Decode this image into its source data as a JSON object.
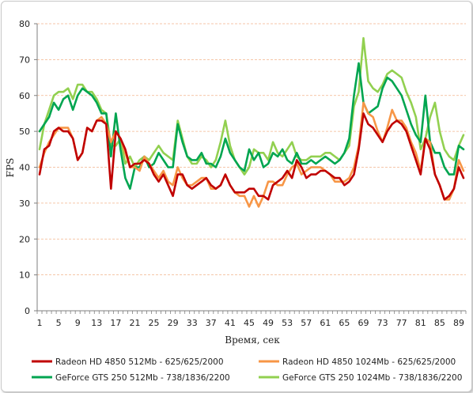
{
  "chart_data": {
    "type": "line",
    "xlabel": "Время, сек",
    "ylabel": "FPS",
    "ylim": [
      0,
      80
    ],
    "yticks": [
      "0",
      "10",
      "20",
      "30",
      "40",
      "50",
      "60",
      "70",
      "80"
    ],
    "xticks": [
      "1",
      "5",
      "9",
      "13",
      "17",
      "21",
      "25",
      "29",
      "33",
      "37",
      "41",
      "45",
      "49",
      "53",
      "57",
      "61",
      "65",
      "69",
      "73",
      "77",
      "81",
      "85",
      "89"
    ],
    "x": [
      1,
      2,
      3,
      4,
      5,
      6,
      7,
      8,
      9,
      10,
      11,
      12,
      13,
      14,
      15,
      16,
      17,
      18,
      19,
      20,
      21,
      22,
      23,
      24,
      25,
      26,
      27,
      28,
      29,
      30,
      31,
      32,
      33,
      34,
      35,
      36,
      37,
      38,
      39,
      40,
      41,
      42,
      43,
      44,
      45,
      46,
      47,
      48,
      49,
      50,
      51,
      52,
      53,
      54,
      55,
      56,
      57,
      58,
      59,
      60,
      61,
      62,
      63,
      64,
      65,
      66,
      67,
      68,
      69,
      70,
      71,
      72,
      73,
      74,
      75,
      76,
      77,
      78,
      79,
      80,
      81,
      82,
      83,
      84,
      85,
      86,
      87,
      88,
      89,
      90
    ],
    "grid": "horizontal-dashed",
    "legend_position": "bottom",
    "series": [
      {
        "name": "Radeon HD 4850 512Mb - 625/625/2000",
        "color": "#c00000",
        "values": [
          38,
          45,
          46,
          50,
          51,
          50,
          50,
          48,
          42,
          44,
          51,
          50,
          53,
          53,
          52,
          34,
          50,
          48,
          45,
          40,
          41,
          41,
          42,
          41,
          38,
          36,
          38,
          35,
          32,
          38,
          38,
          35,
          34,
          35,
          36,
          37,
          35,
          34,
          35,
          38,
          35,
          33,
          33,
          33,
          34,
          34,
          32,
          32,
          31,
          35,
          36,
          37,
          39,
          37,
          42,
          40,
          37,
          38,
          38,
          39,
          39,
          38,
          37,
          37,
          35,
          36,
          38,
          45,
          55,
          52,
          51,
          49,
          47,
          50,
          52,
          53,
          52,
          50,
          46,
          42,
          38,
          48,
          45,
          38,
          35,
          31,
          32,
          34,
          40,
          37
        ]
      },
      {
        "name": "Radeon HD 4850 1024Mb - 625/625/2000",
        "color": "#f79646",
        "values": [
          40,
          44,
          47,
          49,
          51,
          51,
          51,
          48,
          42,
          44,
          51,
          50,
          53,
          54,
          52,
          47,
          50,
          48,
          44,
          40,
          40,
          39,
          43,
          41,
          39,
          37,
          39,
          36,
          35,
          40,
          37,
          35,
          35,
          36,
          37,
          37,
          34,
          34,
          35,
          38,
          35,
          33,
          32,
          32,
          29,
          32,
          29,
          32,
          36,
          36,
          35,
          35,
          38,
          40,
          41,
          38,
          39,
          40,
          40,
          40,
          39,
          38,
          36,
          36,
          36,
          37,
          40,
          46,
          58,
          55,
          54,
          50,
          47,
          51,
          56,
          53,
          53,
          51,
          47,
          44,
          39,
          48,
          47,
          38,
          35,
          31,
          31,
          34,
          42,
          39
        ]
      },
      {
        "name": "GeForce GTS 250 512Mb - 738/1836/2200",
        "color": "#00a550",
        "values": [
          50,
          52,
          54,
          58,
          56,
          59,
          60,
          56,
          60,
          62,
          61,
          60,
          58,
          55,
          55,
          43,
          55,
          45,
          37,
          34,
          40,
          40,
          43,
          40,
          41,
          44,
          42,
          40,
          40,
          52,
          47,
          43,
          42,
          42,
          44,
          41,
          41,
          40,
          43,
          48,
          44,
          42,
          40,
          39,
          45,
          42,
          44,
          40,
          41,
          44,
          43,
          45,
          42,
          41,
          44,
          41,
          41,
          42,
          41,
          42,
          43,
          42,
          41,
          42,
          44,
          48,
          60,
          69,
          58,
          55,
          56,
          57,
          62,
          65,
          64,
          62,
          60,
          56,
          52,
          49,
          47,
          60,
          47,
          44,
          44,
          40,
          38,
          38,
          46,
          45
        ]
      },
      {
        "name": "GeForce GTS 250 1024Mb - 738/1836/2200",
        "color": "#92d050",
        "values": [
          45,
          52,
          56,
          60,
          61,
          61,
          62,
          59,
          63,
          63,
          61,
          61,
          59,
          56,
          55,
          46,
          46,
          48,
          41,
          43,
          40,
          42,
          43,
          42,
          44,
          46,
          44,
          43,
          42,
          53,
          48,
          43,
          41,
          41,
          43,
          42,
          40,
          42,
          47,
          53,
          46,
          42,
          40,
          38,
          40,
          45,
          44,
          44,
          42,
          47,
          44,
          43,
          45,
          47,
          43,
          42,
          42,
          43,
          43,
          43,
          44,
          44,
          43,
          42,
          44,
          46,
          57,
          61,
          76,
          64,
          62,
          61,
          63,
          66,
          67,
          66,
          65,
          61,
          58,
          54,
          45,
          48,
          54,
          58,
          50,
          45,
          43,
          42,
          46,
          49
        ]
      }
    ]
  }
}
